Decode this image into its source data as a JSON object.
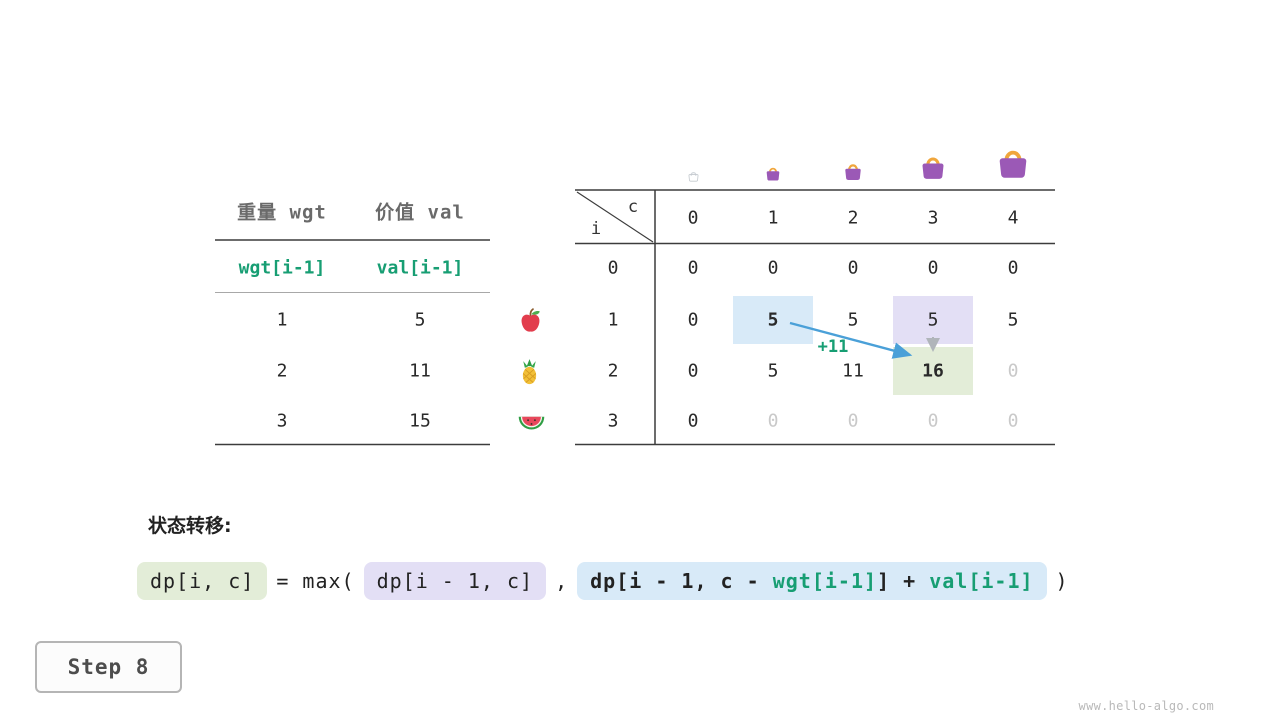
{
  "meta": {
    "step": "Step 8",
    "watermark": "www.hello-algo.com"
  },
  "colors": {
    "green_text": "#179e73",
    "blue_hl": "#d8eaf8",
    "lavender_hl": "#e3dff5",
    "green_hl": "#e3edd8",
    "arrow_blue": "#4aa0d8",
    "dim_text": "#c9c9c9"
  },
  "items_table": {
    "col1_header": "重量 wgt",
    "col2_header": "价值 val",
    "formula_row": {
      "wgt": "wgt[i-1]",
      "val": "val[i-1]"
    },
    "rows": [
      {
        "wgt": "1",
        "val": "5"
      },
      {
        "wgt": "2",
        "val": "11"
      },
      {
        "wgt": "3",
        "val": "15"
      }
    ]
  },
  "dp_table": {
    "corner_row_var": "i",
    "corner_col_var": "c",
    "col_headers": [
      "0",
      "1",
      "2",
      "3",
      "4"
    ],
    "bag_icons": [
      {
        "name": "bag-icon-capacity-0",
        "size": 13,
        "ghost": true
      },
      {
        "name": "bag-icon-capacity-1",
        "size": 18,
        "ghost": false
      },
      {
        "name": "bag-icon-capacity-2",
        "size": 22,
        "ghost": false
      },
      {
        "name": "bag-icon-capacity-3",
        "size": 30,
        "ghost": false
      },
      {
        "name": "bag-icon-capacity-4",
        "size": 38,
        "ghost": false
      }
    ],
    "rows": [
      {
        "header": "0",
        "icon": null,
        "cells": [
          {
            "v": "0"
          },
          {
            "v": "0"
          },
          {
            "v": "0"
          },
          {
            "v": "0"
          },
          {
            "v": "0"
          }
        ]
      },
      {
        "header": "1",
        "icon": "apple",
        "cells": [
          {
            "v": "0"
          },
          {
            "v": "5",
            "bold": true,
            "hl": "blue"
          },
          {
            "v": "5"
          },
          {
            "v": "5",
            "hl": "lavender"
          },
          {
            "v": "5"
          }
        ]
      },
      {
        "header": "2",
        "icon": "pineapple",
        "cells": [
          {
            "v": "0"
          },
          {
            "v": "5"
          },
          {
            "v": "11"
          },
          {
            "v": "16",
            "bold": true,
            "hl": "green"
          },
          {
            "v": "0",
            "dim": true
          }
        ]
      },
      {
        "header": "3",
        "icon": "watermelon",
        "cells": [
          {
            "v": "0"
          },
          {
            "v": "0",
            "dim": true
          },
          {
            "v": "0",
            "dim": true
          },
          {
            "v": "0",
            "dim": true
          },
          {
            "v": "0",
            "dim": true
          }
        ]
      }
    ],
    "transfer_annotation": "+11"
  },
  "transition": {
    "label": "状态转移:",
    "lhs": "dp[i, c]",
    "eq_max": "= max(",
    "arg1": "dp[i - 1, c]",
    "comma": ",",
    "arg2_parts": [
      {
        "t": "dp[i - 1, c - ",
        "green": false
      },
      {
        "t": "wgt[i-1]",
        "green": true
      },
      {
        "t": "] + ",
        "green": false
      },
      {
        "t": "val[i-1]",
        "green": true
      }
    ],
    "close": ")"
  }
}
